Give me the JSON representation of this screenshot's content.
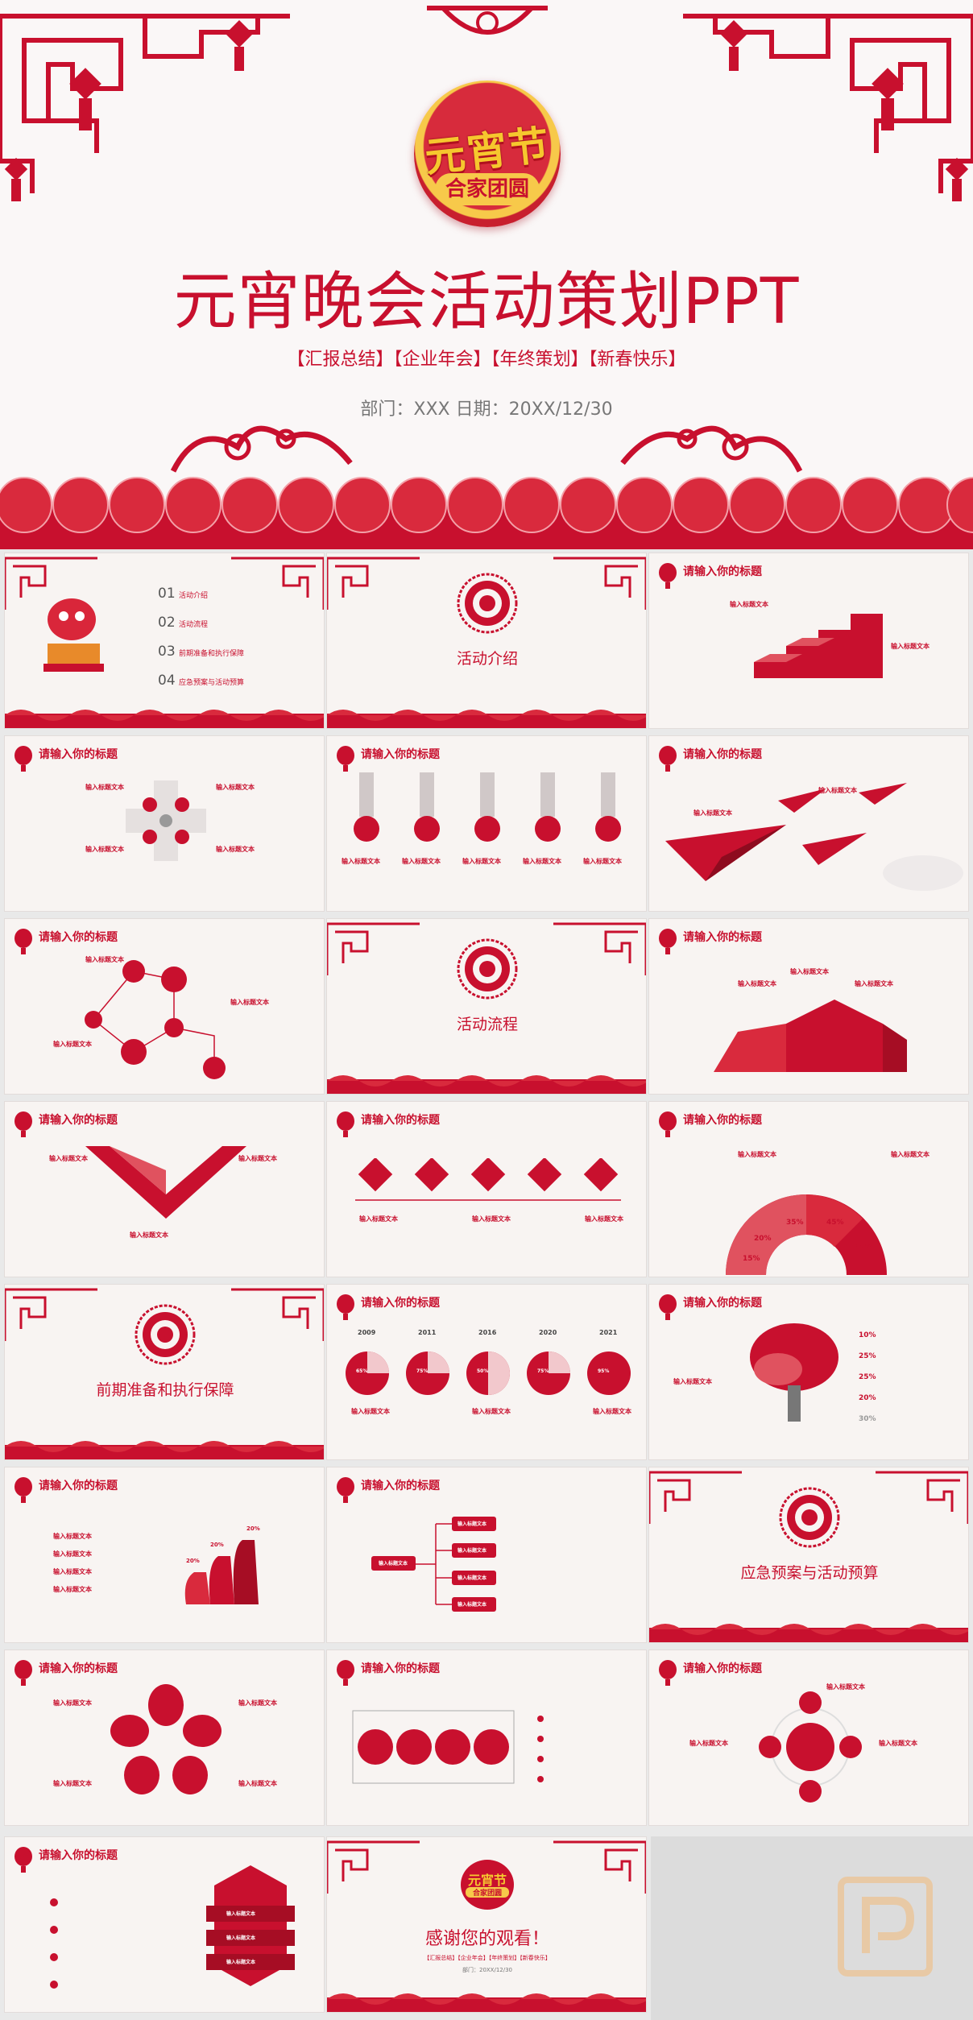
{
  "hero": {
    "badge_title": "元宵节",
    "badge_sub": "合家团圆",
    "title": "元宵晚会活动策划PPT",
    "tags": "【汇报总结】【企业年会】【年终策划】【新春快乐】",
    "meta": "部门：XXX   日期：20XX/12/30"
  },
  "placeholder_title": "请输入你的标题",
  "placeholder_label": "输入标题文本",
  "agenda": [
    {
      "num": "01",
      "label": "活动介绍"
    },
    {
      "num": "02",
      "label": "活动流程"
    },
    {
      "num": "03",
      "label": "前期准备和执行保障"
    },
    {
      "num": "04",
      "label": "应急预案与活动预算"
    }
  ],
  "sections": {
    "intro": "活动介绍",
    "flow": "活动流程",
    "prep": "前期准备和执行保障",
    "budget": "应急预案与活动预算"
  },
  "years": [
    "2009",
    "2011",
    "2016",
    "2020",
    "2021"
  ],
  "pie_pcts": [
    "15%",
    "20%",
    "35%",
    "45%",
    "65%"
  ],
  "tree_pcts": [
    "10%",
    "25%",
    "25%",
    "20%",
    "30%"
  ],
  "bar_pcts": [
    "20%",
    "20%",
    "20%"
  ],
  "circle_pcts": [
    "65%",
    "75%",
    "50%",
    "75%",
    "95%"
  ],
  "ending": {
    "badge_title": "元宵节",
    "badge_sub": "合家团圆",
    "title": "感谢您的观看！",
    "tags": "【汇报总结】【企业年会】【年终策划】【新春快乐】",
    "meta": "部门：20XX/12/30"
  },
  "colors": {
    "accent": "#c8102e",
    "accent_light": "#e0525f",
    "background": "#f8f4f2"
  }
}
